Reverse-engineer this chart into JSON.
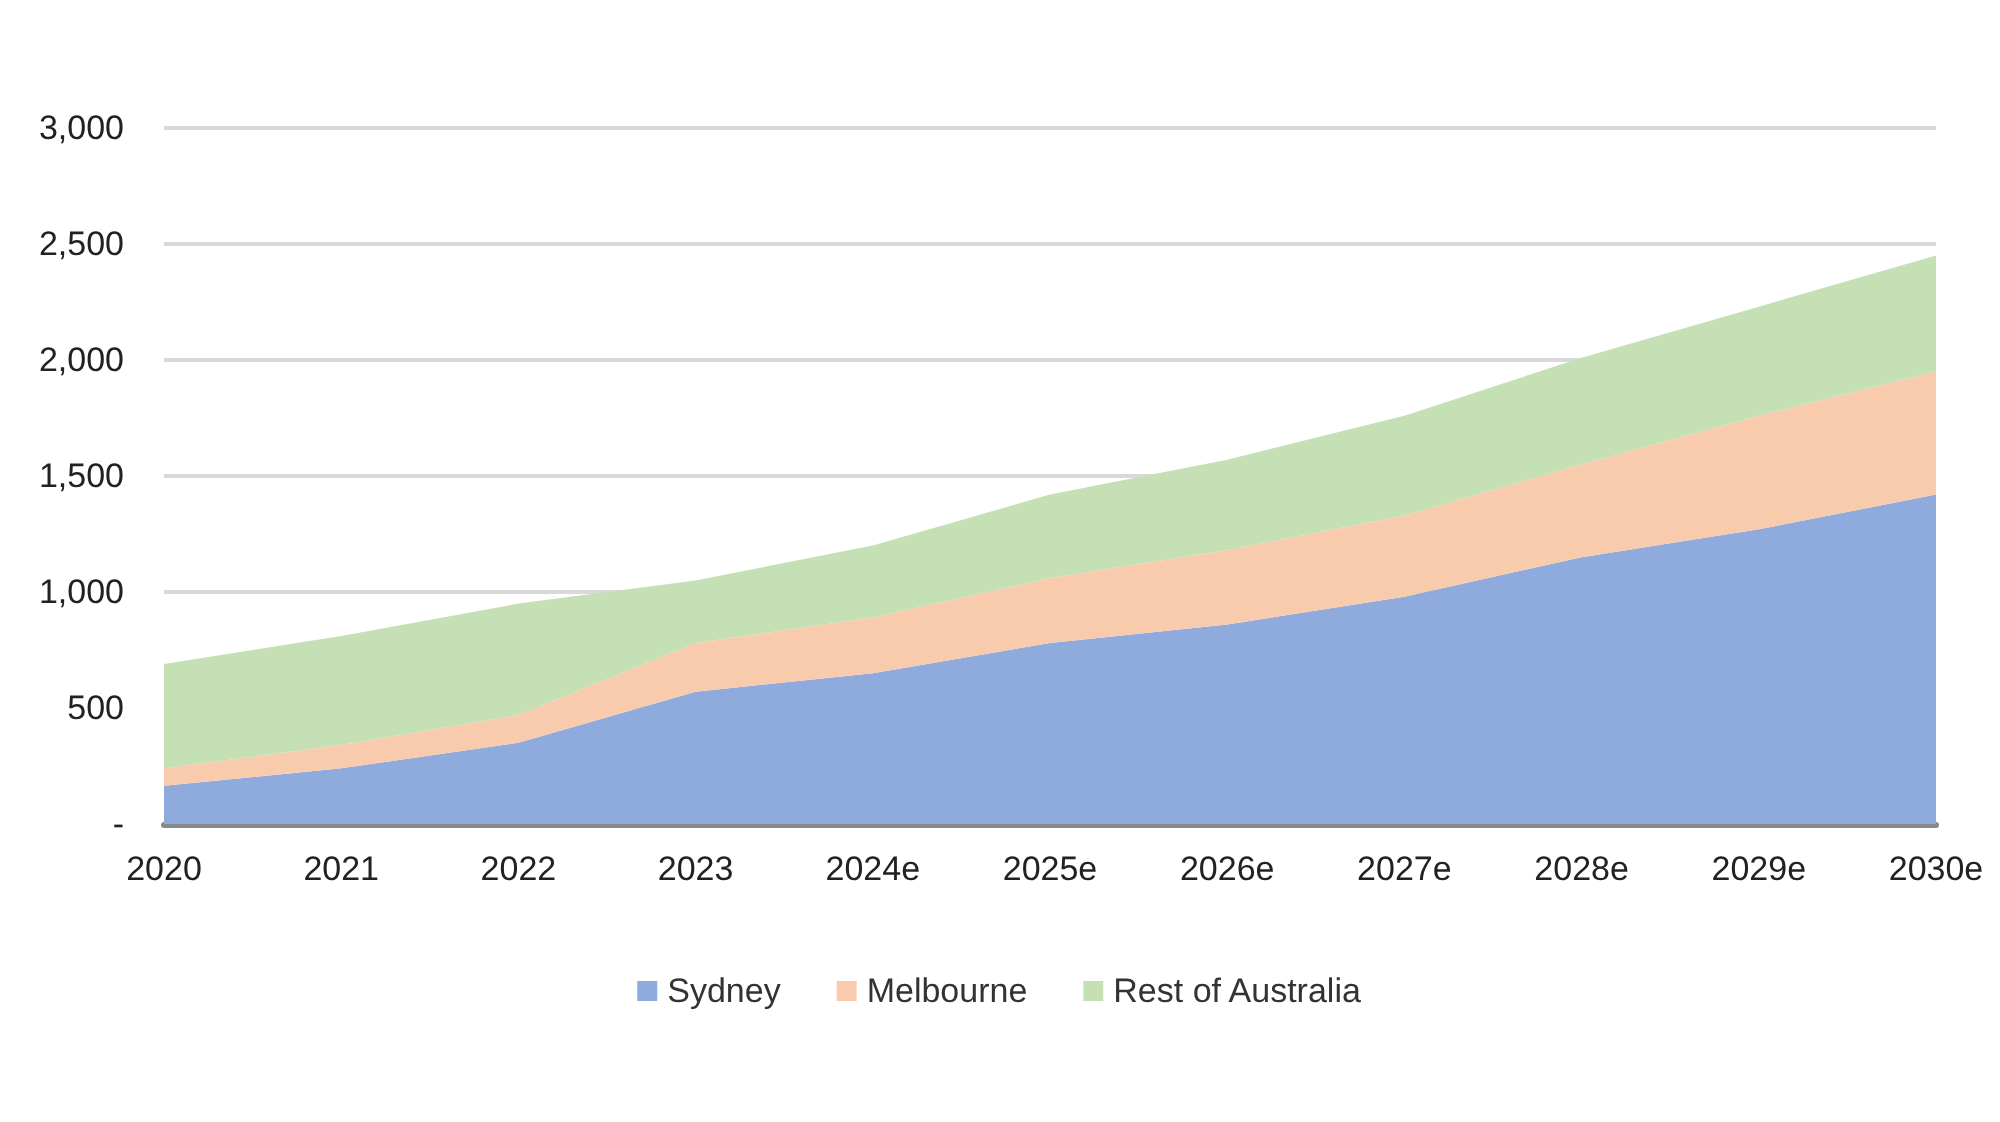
{
  "chart_data": {
    "type": "area",
    "stacked": true,
    "categories": [
      "2020",
      "2021",
      "2022",
      "2023",
      "2024e",
      "2025e",
      "2026e",
      "2027e",
      "2028e",
      "2029e",
      "2030e"
    ],
    "series": [
      {
        "name": "Sydney",
        "color": "#8faadc",
        "values": [
          165,
          240,
          350,
          570,
          650,
          780,
          860,
          980,
          1150,
          1270,
          1420
        ]
      },
      {
        "name": "Melbourne",
        "color": "#f8cbad",
        "values": [
          75,
          100,
          120,
          210,
          240,
          280,
          320,
          350,
          400,
          490,
          530
        ]
      },
      {
        "name": "Rest of Australia",
        "color": "#c5e0b4",
        "values": [
          450,
          470,
          480,
          270,
          310,
          360,
          390,
          430,
          460,
          470,
          500
        ]
      }
    ],
    "ylim": [
      0,
      3000
    ],
    "yticks": [
      {
        "value": 0,
        "label": "-"
      },
      {
        "value": 500,
        "label": "500"
      },
      {
        "value": 1000,
        "label": "1,000"
      },
      {
        "value": 1500,
        "label": "1,500"
      },
      {
        "value": 2000,
        "label": "2,000"
      },
      {
        "value": 2500,
        "label": "2,500"
      },
      {
        "value": 3000,
        "label": "3,000"
      }
    ],
    "grid": "y",
    "legend": "bottom"
  }
}
